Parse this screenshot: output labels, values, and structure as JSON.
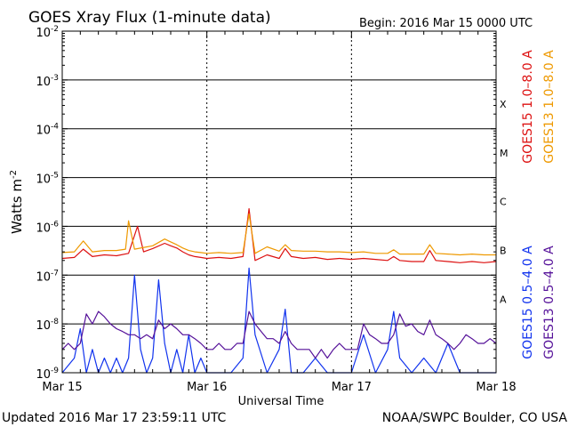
{
  "chart_data": {
    "type": "line",
    "title": "GOES Xray Flux (1-minute data)",
    "begin_label": "Begin:  2016 Mar 15 0000 UTC",
    "xlabel": "Universal Time",
    "ylabel": "Watts m",
    "ylabel_exponent": "-2",
    "y_scale": "log",
    "ylim": [
      1e-09,
      0.01
    ],
    "y_ticks": [
      {
        "value": 0.01,
        "label": "10",
        "exp": "-2"
      },
      {
        "value": 0.001,
        "label": "10",
        "exp": "-3"
      },
      {
        "value": 0.0001,
        "label": "10",
        "exp": "-4"
      },
      {
        "value": 1e-05,
        "label": "10",
        "exp": "-5"
      },
      {
        "value": 1e-06,
        "label": "10",
        "exp": "-6"
      },
      {
        "value": 1e-07,
        "label": "10",
        "exp": "-7"
      },
      {
        "value": 1e-08,
        "label": "10",
        "exp": "-8"
      },
      {
        "value": 1e-09,
        "label": "10",
        "exp": "-9"
      }
    ],
    "xlim": [
      0,
      72
    ],
    "x_ticks": [
      {
        "hour": 0,
        "label": "Mar 15"
      },
      {
        "hour": 24,
        "label": "Mar 16"
      },
      {
        "hour": 48,
        "label": "Mar 17"
      },
      {
        "hour": 72,
        "label": "Mar 18"
      }
    ],
    "flare_classes": [
      {
        "label": "X",
        "value": 0.00032
      },
      {
        "label": "M",
        "value": 3.2e-05
      },
      {
        "label": "C",
        "value": 3.2e-06
      },
      {
        "label": "B",
        "value": 3.2e-07
      },
      {
        "label": "A",
        "value": 3.2e-08
      }
    ],
    "legend_right": [
      {
        "text": "GOES15 1.0–8.0 A",
        "color": "#dd1111"
      },
      {
        "text": "GOES13 1.0–8.0 A",
        "color": "#ee9900"
      },
      {
        "text": "GOES15 0.5–4.0 A",
        "color": "#1133ee"
      },
      {
        "text": "GOES13 0.5–4.0 A",
        "color": "#551199"
      }
    ],
    "series": [
      {
        "name": "GOES15 1.0–8.0 A",
        "color": "#dd1111",
        "x": [
          0,
          2,
          3.5,
          5,
          7,
          9,
          11,
          12.5,
          13.5,
          15,
          17,
          18,
          19,
          20,
          21,
          22,
          23,
          24,
          26,
          28,
          30,
          31,
          32,
          34,
          36,
          37,
          38,
          40,
          42,
          44,
          46,
          48,
          50,
          52,
          54,
          55,
          56,
          58,
          60,
          61,
          62,
          64,
          66,
          68,
          70,
          72
        ],
        "y": [
          2.2e-07,
          2.3e-07,
          3.4e-07,
          2.4e-07,
          2.6e-07,
          2.5e-07,
          2.8e-07,
          1e-06,
          3e-07,
          3.5e-07,
          4.5e-07,
          4e-07,
          3.6e-07,
          3e-07,
          2.6e-07,
          2.4e-07,
          2.3e-07,
          2.2e-07,
          2.3e-07,
          2.2e-07,
          2.4e-07,
          2.3e-06,
          2e-07,
          2.6e-07,
          2.2e-07,
          3.5e-07,
          2.4e-07,
          2.2e-07,
          2.3e-07,
          2.1e-07,
          2.2e-07,
          2.1e-07,
          2.2e-07,
          2.1e-07,
          2e-07,
          2.4e-07,
          2e-07,
          1.9e-07,
          1.9e-07,
          3.2e-07,
          2e-07,
          1.9e-07,
          1.8e-07,
          1.9e-07,
          1.8e-07,
          1.9e-07
        ]
      },
      {
        "name": "GOES13 1.0–8.0 A",
        "color": "#ee9900",
        "x": [
          0,
          2,
          3.5,
          5,
          7,
          9,
          10.5,
          11,
          12,
          15,
          17,
          18,
          19,
          20,
          21,
          22,
          23,
          24,
          26,
          28,
          30,
          31,
          32,
          34,
          36,
          37,
          38,
          40,
          42,
          44,
          46,
          48,
          50,
          52,
          54,
          55,
          56,
          58,
          60,
          61,
          62,
          64,
          66,
          68,
          70,
          72
        ],
        "y": [
          2.9e-07,
          3e-07,
          5e-07,
          3e-07,
          3.2e-07,
          3.2e-07,
          3.4e-07,
          1.3e-06,
          3.4e-07,
          4e-07,
          5.5e-07,
          4.8e-07,
          4.2e-07,
          3.6e-07,
          3.2e-07,
          3e-07,
          2.9e-07,
          2.8e-07,
          2.9e-07,
          2.8e-07,
          2.9e-07,
          1.8e-06,
          2.8e-07,
          3.8e-07,
          3.1e-07,
          4.2e-07,
          3.2e-07,
          3.1e-07,
          3.1e-07,
          3e-07,
          3e-07,
          2.9e-07,
          3e-07,
          2.8e-07,
          2.8e-07,
          3.3e-07,
          2.7e-07,
          2.7e-07,
          2.7e-07,
          4.2e-07,
          2.8e-07,
          2.7e-07,
          2.6e-07,
          2.7e-07,
          2.6e-07,
          2.6e-07
        ]
      },
      {
        "name": "GOES15 0.5–4.0 A",
        "color": "#1133ee",
        "x": [
          0,
          2,
          3,
          4,
          5,
          6,
          7,
          8,
          9,
          10,
          11,
          12,
          13,
          14,
          15,
          16,
          17,
          18,
          19,
          20,
          21,
          22,
          23,
          24,
          26,
          28,
          30,
          31,
          32,
          34,
          36,
          37,
          38,
          40,
          42,
          44,
          46,
          48,
          50,
          52,
          54,
          55,
          56,
          58,
          60,
          62,
          64,
          66,
          68,
          70,
          72
        ],
        "y": [
          1e-09,
          2e-09,
          8e-09,
          1e-09,
          3e-09,
          1e-09,
          2e-09,
          1e-09,
          2e-09,
          1e-09,
          2e-09,
          1e-07,
          3e-09,
          1e-09,
          2e-09,
          8e-08,
          4e-09,
          1e-09,
          3e-09,
          1e-09,
          6e-09,
          1e-09,
          2e-09,
          1e-09,
          1e-09,
          1e-09,
          2e-09,
          1.4e-07,
          6e-09,
          1e-09,
          3e-09,
          2e-08,
          1e-09,
          1e-09,
          2e-09,
          1e-09,
          1e-09,
          1e-09,
          6e-09,
          1e-09,
          3e-09,
          1.8e-08,
          2e-09,
          1e-09,
          2e-09,
          1e-09,
          4e-09,
          1e-09,
          1e-09,
          1e-09,
          1e-09
        ]
      },
      {
        "name": "GOES13 0.5–4.0 A",
        "color": "#551199",
        "x": [
          0,
          1,
          2,
          3,
          4,
          5,
          6,
          7,
          8,
          9,
          10,
          11,
          12,
          13,
          14,
          15,
          16,
          17,
          18,
          19,
          20,
          21,
          22,
          23,
          24,
          25,
          26,
          27,
          28,
          29,
          30,
          31,
          32,
          33,
          34,
          35,
          36,
          37,
          38,
          39,
          40,
          41,
          42,
          43,
          44,
          45,
          46,
          47,
          48,
          49,
          50,
          51,
          52,
          53,
          54,
          55,
          56,
          57,
          58,
          59,
          60,
          61,
          62,
          63,
          64,
          65,
          66,
          67,
          68,
          69,
          70,
          71,
          72
        ],
        "y": [
          3e-09,
          4e-09,
          3e-09,
          4e-09,
          1.6e-08,
          1e-08,
          1.8e-08,
          1.4e-08,
          1e-08,
          8e-09,
          7e-09,
          6e-09,
          6e-09,
          5e-09,
          6e-09,
          5e-09,
          1.2e-08,
          8e-09,
          1e-08,
          8e-09,
          6e-09,
          6e-09,
          5e-09,
          4e-09,
          3e-09,
          3e-09,
          4e-09,
          3e-09,
          3e-09,
          4e-09,
          4e-09,
          1.8e-08,
          1e-08,
          7e-09,
          5e-09,
          5e-09,
          4e-09,
          7e-09,
          4e-09,
          3e-09,
          3e-09,
          3e-09,
          2e-09,
          3e-09,
          2e-09,
          3e-09,
          4e-09,
          3e-09,
          3e-09,
          3e-09,
          1e-08,
          6e-09,
          5e-09,
          4e-09,
          4e-09,
          6e-09,
          1.6e-08,
          9e-09,
          1e-08,
          7e-09,
          6e-09,
          1.2e-08,
          6e-09,
          5e-09,
          4e-09,
          3e-09,
          4e-09,
          6e-09,
          5e-09,
          4e-09,
          4e-09,
          5e-09,
          4e-09
        ]
      }
    ]
  },
  "footer": {
    "updated": "Updated 2016 Mar 17 23:59:11 UTC",
    "credit": "NOAA/SWPC Boulder, CO USA"
  }
}
